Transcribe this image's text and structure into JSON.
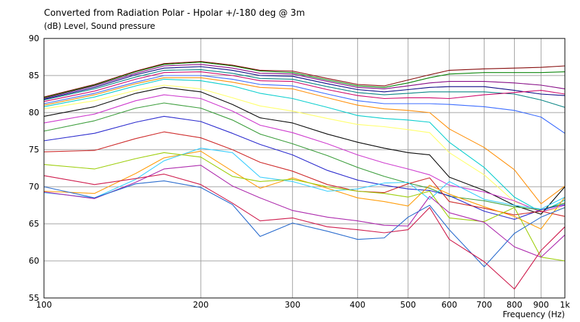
{
  "chart_data": {
    "type": "line",
    "title": "Converted from Radiation Polar - Hpolar +/-180 deg @ 3m",
    "ylabel": "(dB)  Level, Sound pressure",
    "xlabel": "Frequency  (Hz)",
    "x_scale": "log",
    "xlim": [
      100,
      1000
    ],
    "ylim": [
      55,
      90
    ],
    "grid": true,
    "x_ticks": [
      100,
      200,
      300,
      400,
      500,
      600,
      700,
      800,
      900,
      1000
    ],
    "x_tick_labels": [
      "100",
      "200",
      "300",
      "400",
      "500",
      "600",
      "700",
      "800",
      "900",
      "1k"
    ],
    "y_ticks": [
      55,
      60,
      65,
      70,
      75,
      80,
      85,
      90
    ],
    "y_tick_labels": [
      "55",
      "60",
      "65",
      "70",
      "75",
      "80",
      "85",
      "90"
    ],
    "series": [
      {
        "color": "#800000",
        "x": [
          100,
          125,
          150,
          170,
          200,
          230,
          260,
          300,
          350,
          400,
          450,
          500,
          550,
          600,
          700,
          800,
          900,
          1000
        ],
        "y": [
          82.1,
          83.8,
          85.6,
          86.6,
          86.9,
          86.4,
          85.7,
          85.6,
          84.6,
          83.8,
          83.6,
          84.4,
          85.1,
          85.7,
          85.9,
          86.0,
          86.1,
          86.3
        ]
      },
      {
        "color": "#008000",
        "x": [
          100,
          125,
          150,
          170,
          200,
          230,
          260,
          300,
          350,
          400,
          450,
          500,
          550,
          600,
          700,
          800,
          900,
          1000
        ],
        "y": [
          82.0,
          83.7,
          85.5,
          86.5,
          86.8,
          86.3,
          85.6,
          85.4,
          84.4,
          83.6,
          83.4,
          84.0,
          84.7,
          85.2,
          85.4,
          85.4,
          85.4,
          85.5
        ]
      },
      {
        "color": "#800080",
        "x": [
          100,
          125,
          150,
          170,
          200,
          230,
          260,
          300,
          350,
          400,
          450,
          500,
          550,
          600,
          700,
          800,
          900,
          1000
        ],
        "y": [
          81.9,
          83.6,
          85.3,
          86.3,
          86.5,
          86.0,
          85.3,
          85.2,
          84.2,
          83.4,
          83.2,
          83.6,
          84.0,
          84.2,
          84.2,
          84.0,
          83.7,
          83.2
        ]
      },
      {
        "color": "#000080",
        "x": [
          100,
          125,
          150,
          170,
          200,
          230,
          260,
          300,
          350,
          400,
          450,
          500,
          550,
          600,
          700,
          800,
          900,
          1000
        ],
        "y": [
          81.8,
          83.4,
          85.1,
          86.0,
          86.2,
          85.7,
          85.0,
          84.9,
          83.9,
          83.1,
          82.8,
          83.1,
          83.4,
          83.5,
          83.5,
          83.0,
          82.5,
          82.3
        ]
      },
      {
        "color": "#008080",
        "x": [
          100,
          125,
          150,
          170,
          200,
          230,
          260,
          300,
          350,
          400,
          450,
          500,
          550,
          600,
          700,
          800,
          900,
          1000
        ],
        "y": [
          81.7,
          83.2,
          84.8,
          85.7,
          85.8,
          85.3,
          84.6,
          84.5,
          83.5,
          82.7,
          82.4,
          82.6,
          82.8,
          82.8,
          82.8,
          82.5,
          81.7,
          80.7
        ]
      },
      {
        "color": "#cc0066",
        "x": [
          100,
          125,
          150,
          170,
          200,
          230,
          260,
          300,
          350,
          400,
          450,
          500,
          550,
          600,
          700,
          800,
          900,
          1000
        ],
        "y": [
          81.5,
          82.9,
          84.5,
          85.4,
          85.5,
          85.0,
          84.3,
          84.2,
          83.1,
          82.3,
          81.9,
          82.0,
          82.0,
          81.9,
          82.4,
          82.7,
          83.0,
          82.5
        ]
      },
      {
        "color": "#3366ff",
        "x": [
          100,
          125,
          150,
          170,
          200,
          230,
          260,
          300,
          350,
          400,
          450,
          500,
          550,
          600,
          700,
          800,
          900,
          1000
        ],
        "y": [
          81.2,
          82.6,
          84.1,
          85.0,
          85.0,
          84.5,
          83.8,
          83.6,
          82.5,
          81.6,
          81.2,
          81.2,
          81.2,
          81.1,
          80.8,
          80.3,
          79.4,
          77.2
        ]
      },
      {
        "color": "#ff8c00",
        "x": [
          100,
          125,
          150,
          170,
          200,
          230,
          260,
          300,
          350,
          400,
          450,
          500,
          550,
          600,
          700,
          800,
          900,
          1000
        ],
        "y": [
          81.0,
          82.4,
          83.9,
          84.7,
          84.7,
          84.1,
          83.4,
          83.2,
          82.0,
          81.0,
          80.5,
          80.3,
          80.0,
          77.8,
          75.3,
          72.3,
          67.7,
          70.1
        ]
      },
      {
        "color": "#00cccc",
        "x": [
          100,
          125,
          150,
          170,
          200,
          230,
          260,
          300,
          350,
          400,
          450,
          500,
          550,
          600,
          700,
          800,
          900,
          1000
        ],
        "y": [
          80.8,
          82.1,
          83.6,
          84.5,
          84.3,
          83.6,
          82.6,
          81.9,
          80.7,
          79.6,
          79.2,
          79.0,
          78.7,
          76.0,
          72.6,
          68.6,
          66.6,
          68.2
        ]
      },
      {
        "color": "#ffff66",
        "x": [
          100,
          125,
          150,
          170,
          200,
          230,
          260,
          300,
          350,
          400,
          450,
          500,
          550,
          600,
          700,
          800,
          900,
          1000
        ],
        "y": [
          80.5,
          81.6,
          83.0,
          83.7,
          83.2,
          82.0,
          80.9,
          80.2,
          79.2,
          78.4,
          78.1,
          77.7,
          77.3,
          74.6,
          71.6,
          68.0,
          66.7,
          67.1
        ]
      },
      {
        "color": "#000000",
        "x": [
          100,
          125,
          150,
          170,
          200,
          230,
          260,
          300,
          350,
          400,
          450,
          500,
          550,
          600,
          700,
          800,
          900,
          1000
        ],
        "y": [
          79.5,
          80.8,
          82.6,
          83.4,
          82.8,
          81.1,
          79.3,
          78.6,
          77.1,
          76.0,
          75.2,
          74.6,
          74.3,
          71.3,
          69.5,
          67.5,
          66.3,
          70.0
        ]
      },
      {
        "color": "#cc33cc",
        "x": [
          100,
          125,
          150,
          170,
          200,
          230,
          260,
          300,
          350,
          400,
          450,
          500,
          550,
          600,
          700,
          800,
          900,
          1000
        ],
        "y": [
          78.6,
          79.8,
          81.6,
          82.4,
          81.9,
          80.2,
          78.3,
          77.3,
          75.8,
          74.3,
          73.2,
          72.4,
          71.6,
          70.2,
          69.3,
          68.1,
          66.6,
          67.5
        ]
      },
      {
        "color": "#339933",
        "x": [
          100,
          125,
          150,
          170,
          200,
          230,
          260,
          300,
          350,
          400,
          450,
          500,
          550,
          600,
          700,
          800,
          900,
          1000
        ],
        "y": [
          77.5,
          78.9,
          80.6,
          81.3,
          80.6,
          79.0,
          77.1,
          75.8,
          74.2,
          72.6,
          71.4,
          70.5,
          69.8,
          68.7,
          68.1,
          67.3,
          66.9,
          67.8
        ]
      },
      {
        "color": "#2222cc",
        "x": [
          100,
          125,
          150,
          170,
          200,
          230,
          260,
          300,
          350,
          400,
          450,
          500,
          550,
          600,
          700,
          800,
          900,
          1000
        ],
        "y": [
          76.2,
          77.2,
          78.7,
          79.5,
          78.8,
          77.2,
          75.7,
          74.3,
          72.2,
          70.9,
          70.2,
          69.7,
          69.5,
          68.8,
          66.7,
          65.6,
          66.9,
          67.6
        ]
      },
      {
        "color": "#cc2222",
        "x": [
          100,
          125,
          150,
          170,
          200,
          230,
          260,
          300,
          350,
          400,
          450,
          500,
          550,
          600,
          700,
          800,
          900,
          1000
        ],
        "y": [
          74.7,
          74.9,
          76.5,
          77.4,
          76.6,
          75.0,
          73.3,
          72.1,
          70.3,
          69.4,
          69.2,
          70.4,
          71.2,
          68.0,
          67.1,
          66.2,
          66.7,
          66.0
        ]
      },
      {
        "color": "#ff9900",
        "x": [
          100,
          125,
          150,
          170,
          200,
          230,
          260,
          300,
          350,
          400,
          450,
          500,
          550,
          600,
          700,
          800,
          900,
          1000
        ],
        "y": [
          69.4,
          69.1,
          71.8,
          73.9,
          74.8,
          72.1,
          69.8,
          71.2,
          69.8,
          68.5,
          68.0,
          67.4,
          70.2,
          69.0,
          67.3,
          66.0,
          64.3,
          68.6
        ]
      },
      {
        "color": "#33ccff",
        "x": [
          100,
          125,
          150,
          170,
          200,
          230,
          260,
          300,
          350,
          400,
          450,
          500,
          550,
          600,
          700,
          800,
          900,
          1000
        ],
        "y": [
          69.2,
          68.5,
          71.0,
          73.5,
          75.2,
          74.6,
          71.3,
          70.7,
          69.4,
          69.7,
          70.5,
          70.6,
          68.3,
          70.7,
          68.3,
          67.5,
          67.0,
          68.6
        ]
      },
      {
        "color": "#99cc00",
        "x": [
          100,
          125,
          150,
          170,
          200,
          230,
          260,
          300,
          350,
          400,
          450,
          500,
          550,
          600,
          700,
          800,
          900,
          1000
        ],
        "y": [
          73.0,
          72.4,
          73.8,
          74.6,
          74.0,
          71.4,
          70.7,
          71.0,
          70.0,
          69.4,
          69.1,
          68.6,
          69.4,
          65.8,
          65.3,
          67.2,
          60.5,
          60.0
        ]
      },
      {
        "color": "#aa22aa",
        "x": [
          100,
          125,
          150,
          170,
          200,
          230,
          260,
          300,
          350,
          400,
          450,
          500,
          550,
          600,
          700,
          800,
          900,
          1000
        ],
        "y": [
          69.3,
          68.4,
          70.6,
          72.4,
          72.9,
          70.1,
          68.5,
          66.8,
          65.9,
          65.4,
          64.8,
          64.7,
          68.7,
          66.5,
          65.2,
          61.9,
          60.5,
          63.5
        ]
      },
      {
        "color": "#2266cc",
        "x": [
          100,
          125,
          150,
          170,
          200,
          230,
          260,
          300,
          350,
          400,
          450,
          500,
          550,
          600,
          700,
          800,
          900,
          1000
        ],
        "y": [
          70.0,
          68.5,
          70.4,
          70.8,
          69.9,
          67.6,
          63.3,
          65.1,
          64.0,
          62.9,
          63.1,
          65.9,
          67.5,
          64.2,
          59.2,
          63.7,
          65.9,
          67.2
        ]
      },
      {
        "color": "#cc1144",
        "x": [
          100,
          125,
          150,
          170,
          200,
          230,
          260,
          300,
          350,
          400,
          450,
          500,
          550,
          600,
          700,
          800,
          900,
          1000
        ],
        "y": [
          71.5,
          70.3,
          71.1,
          71.7,
          70.3,
          67.8,
          65.4,
          65.8,
          64.6,
          64.2,
          63.8,
          64.2,
          67.2,
          62.9,
          59.9,
          56.2,
          61.4,
          64.6
        ]
      }
    ]
  }
}
